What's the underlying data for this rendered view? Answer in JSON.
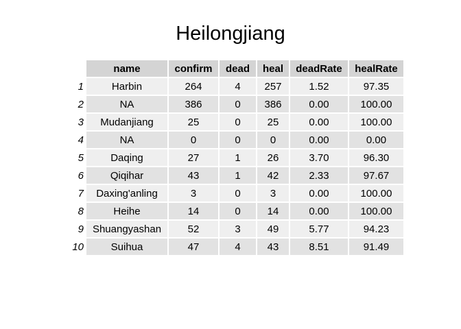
{
  "chart_data": {
    "type": "table",
    "title": "Heilongjiang",
    "columns": [
      "name",
      "confirm",
      "dead",
      "heal",
      "deadRate",
      "healRate"
    ],
    "rows": [
      {
        "id": "1",
        "name": "Harbin",
        "confirm": "264",
        "dead": "4",
        "heal": "257",
        "deadRate": "1.52",
        "healRate": "97.35"
      },
      {
        "id": "2",
        "name": "NA",
        "confirm": "386",
        "dead": "0",
        "heal": "386",
        "deadRate": "0.00",
        "healRate": "100.00"
      },
      {
        "id": "3",
        "name": "Mudanjiang",
        "confirm": "25",
        "dead": "0",
        "heal": "25",
        "deadRate": "0.00",
        "healRate": "100.00"
      },
      {
        "id": "4",
        "name": "NA",
        "confirm": "0",
        "dead": "0",
        "heal": "0",
        "deadRate": "0.00",
        "healRate": "0.00"
      },
      {
        "id": "5",
        "name": "Daqing",
        "confirm": "27",
        "dead": "1",
        "heal": "26",
        "deadRate": "3.70",
        "healRate": "96.30"
      },
      {
        "id": "6",
        "name": "Qiqihar",
        "confirm": "43",
        "dead": "1",
        "heal": "42",
        "deadRate": "2.33",
        "healRate": "97.67"
      },
      {
        "id": "7",
        "name": "Daxing'anling",
        "confirm": "3",
        "dead": "0",
        "heal": "3",
        "deadRate": "0.00",
        "healRate": "100.00"
      },
      {
        "id": "8",
        "name": "Heihe",
        "confirm": "14",
        "dead": "0",
        "heal": "14",
        "deadRate": "0.00",
        "healRate": "100.00"
      },
      {
        "id": "9",
        "name": "Shuangyashan",
        "confirm": "52",
        "dead": "3",
        "heal": "49",
        "deadRate": "5.77",
        "healRate": "94.23"
      },
      {
        "id": "10",
        "name": "Suihua",
        "confirm": "47",
        "dead": "4",
        "heal": "43",
        "deadRate": "8.51",
        "healRate": "91.49"
      }
    ]
  },
  "colors": {
    "header_bg": "#d4d4d4",
    "row_odd_bg": "#efefef",
    "row_even_bg": "#e2e2e2"
  }
}
